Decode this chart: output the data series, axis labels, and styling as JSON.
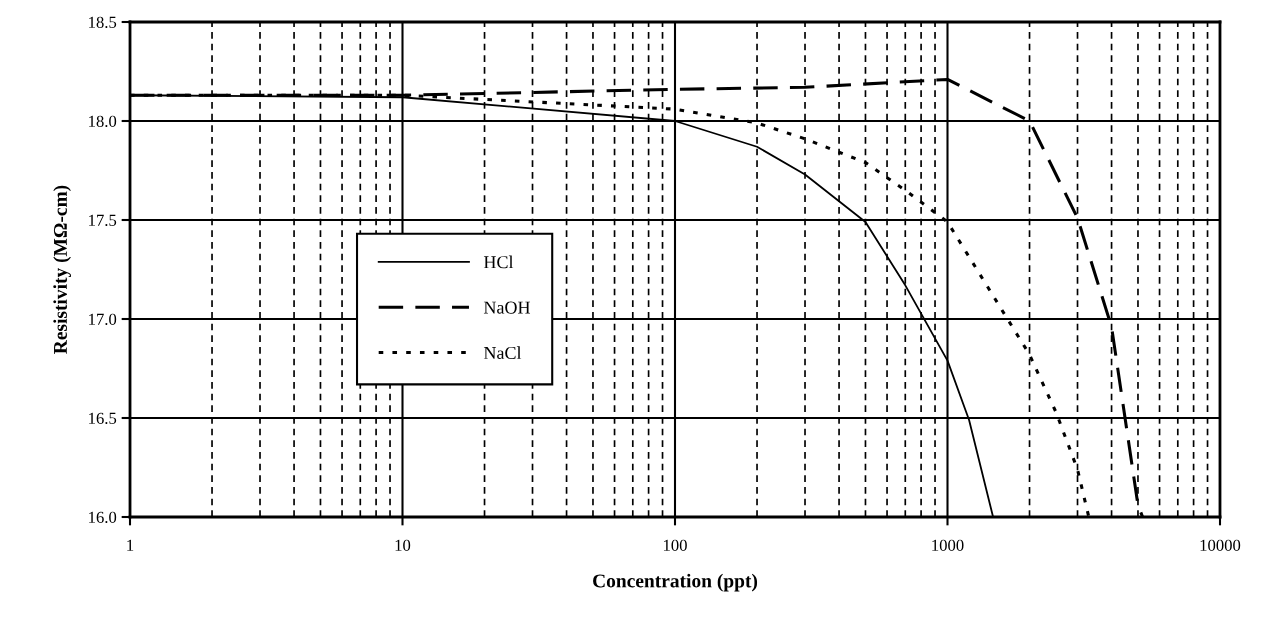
{
  "chart_data": {
    "type": "line",
    "xlabel": "Concentration (ppt)",
    "ylabel": "Resistivity (MΩ-cm)",
    "log": "x",
    "grid": true,
    "legend": "left",
    "xlim": [
      1,
      10000
    ],
    "xticks": [
      1,
      10,
      100,
      1000,
      10000
    ],
    "ylim": [
      16.0,
      18.5
    ],
    "yticks": [
      {
        "value": 16.0,
        "label": "16.0"
      },
      {
        "value": 16.5,
        "label": "16.5"
      },
      {
        "value": 17.0,
        "label": "17.0"
      },
      {
        "value": 17.5,
        "label": "17.5"
      },
      {
        "value": 18.0,
        "label": "18.0"
      },
      {
        "value": 18.5,
        "label": "18.5"
      }
    ],
    "series": [
      {
        "name": "HCl",
        "color": "#000000",
        "line_style": "solid",
        "x": [
          1,
          10,
          100,
          200,
          300,
          500,
          700,
          1000,
          1200,
          1470
        ],
        "values": [
          18.13,
          18.12,
          18.0,
          17.87,
          17.73,
          17.49,
          17.17,
          16.79,
          16.49,
          16.0
        ]
      },
      {
        "name": "NaOH",
        "color": "#000000",
        "line_style": "dashed",
        "x": [
          1,
          10,
          100,
          300,
          1000,
          2000,
          3000,
          4000,
          5000,
          5200
        ],
        "values": [
          18.13,
          18.13,
          18.16,
          18.17,
          18.21,
          18.0,
          17.51,
          16.96,
          16.06,
          16.0
        ]
      },
      {
        "name": "NaCl",
        "color": "#000000",
        "line_style": "dotted",
        "x": [
          1,
          10,
          100,
          200,
          300,
          500,
          700,
          1000,
          2000,
          2500,
          3000,
          3300
        ],
        "values": [
          18.13,
          18.13,
          18.06,
          17.99,
          17.91,
          17.79,
          17.65,
          17.49,
          16.82,
          16.53,
          16.24,
          16.0
        ]
      }
    ]
  }
}
